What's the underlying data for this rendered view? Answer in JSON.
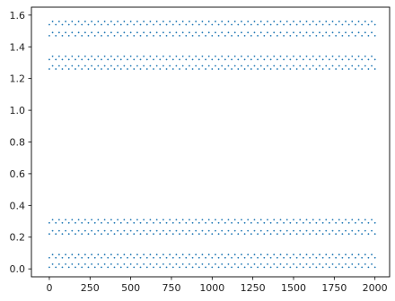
{
  "chart_data": {
    "type": "scatter",
    "title": "",
    "xlabel": "",
    "ylabel": "",
    "xlim": [
      -110,
      2090
    ],
    "ylim": [
      -0.05,
      1.65
    ],
    "x_ticks": [
      0,
      250,
      500,
      750,
      1000,
      1250,
      1500,
      1750,
      2000
    ],
    "x_tick_labels": [
      "0",
      "250",
      "500",
      "750",
      "1000",
      "1250",
      "1500",
      "1750",
      "2000"
    ],
    "y_ticks": [
      0.0,
      0.2,
      0.4,
      0.6,
      0.8,
      1.0,
      1.2,
      1.4,
      1.6
    ],
    "y_tick_labels": [
      "0.0",
      "0.2",
      "0.4",
      "0.6",
      "0.8",
      "1.0",
      "1.2",
      "1.4",
      "1.6"
    ],
    "grid": false,
    "legend": "none",
    "marker_color": "#1f77b4",
    "series": [
      {
        "values_description": "points spaced ~20 along x from 0 to 2000, y alternating within each band",
        "x_start": 0,
        "x_end": 2000,
        "x_step": 20,
        "bands": [
          [
            0.01,
            0.03
          ],
          [
            0.07,
            0.09
          ],
          [
            0.22,
            0.24
          ],
          [
            0.29,
            0.31
          ],
          [
            1.26,
            1.28
          ],
          [
            1.32,
            1.34
          ],
          [
            1.47,
            1.49
          ],
          [
            1.54,
            1.56
          ]
        ]
      }
    ]
  }
}
